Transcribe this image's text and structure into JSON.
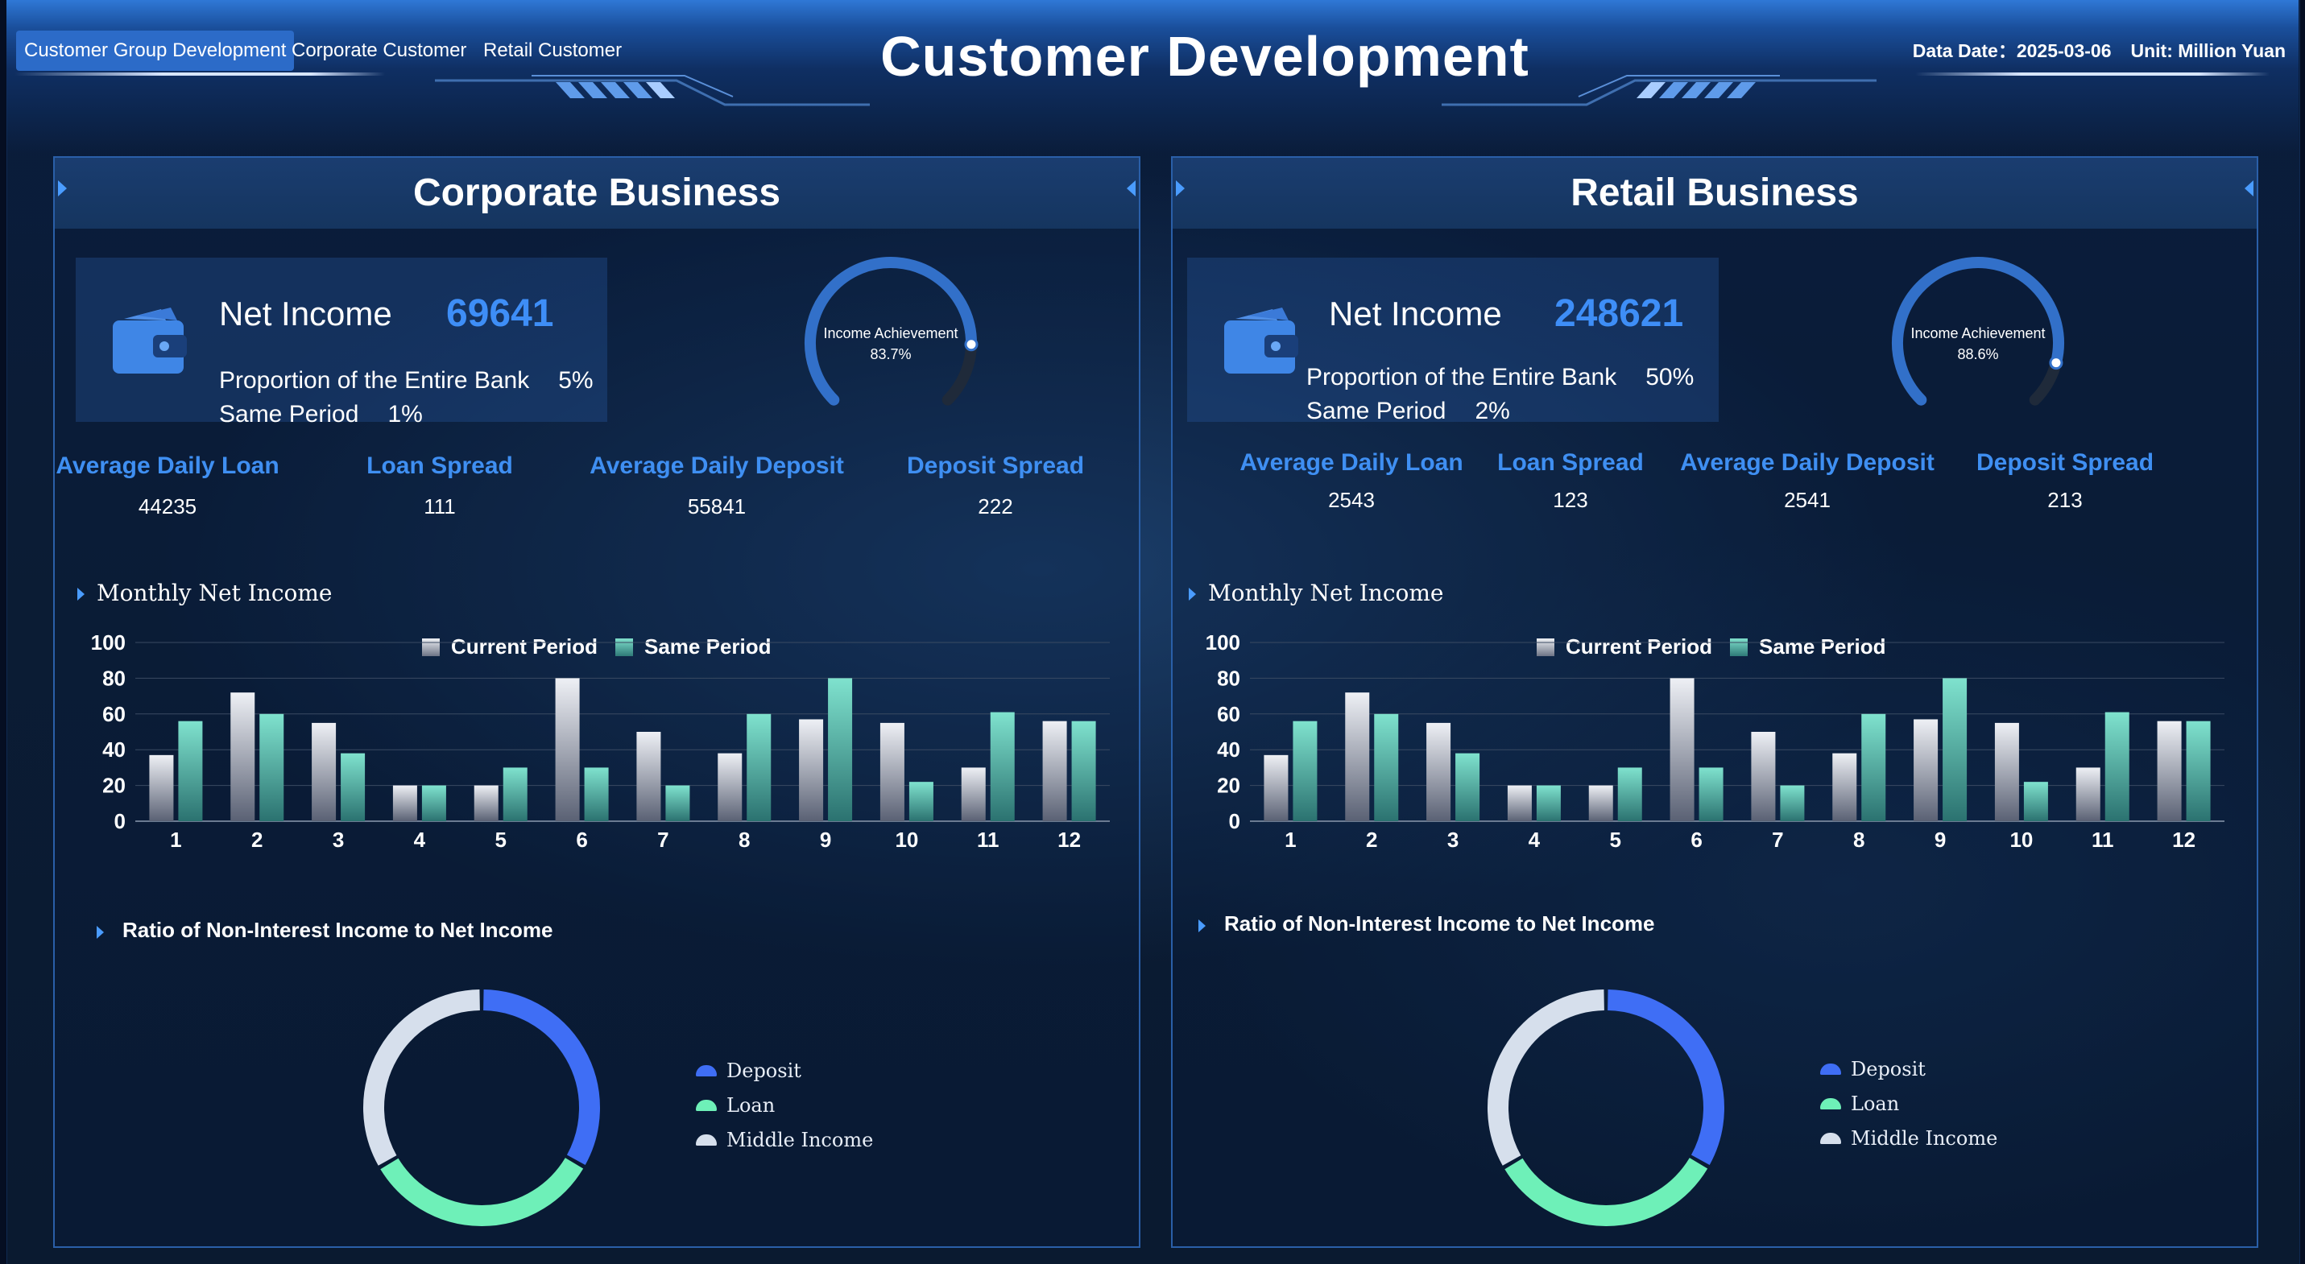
{
  "header": {
    "title": "Customer Development",
    "tabs": [
      {
        "label": "Customer Group Development",
        "active": true
      },
      {
        "label": "Corporate Customer",
        "active": false
      },
      {
        "label": "Retail Customer",
        "active": false
      }
    ],
    "data_date": "Data Date：2025-03-06",
    "unit": "Unit: Million Yuan"
  },
  "colors": {
    "accent": "#3e8ef7",
    "current_period": "#c8ccd6",
    "same_period": "#5bc9b3",
    "deposit": "#3f6ef5",
    "loan": "#6ef0b8",
    "middle_income": "#d6dfec"
  },
  "corporate": {
    "title": "Corporate Business",
    "net_income_label": "Net Income",
    "net_income_value": "69641",
    "proportion_label": "Proportion of the Entire Bank",
    "proportion_value": "5%",
    "same_period_label": "Same Period",
    "same_period_value": "1%",
    "gauge_label": "Income Achievement",
    "gauge_value": "83.7%",
    "gauge_fraction": 0.837,
    "metrics": [
      {
        "label": "Average Daily Loan",
        "value": "44235"
      },
      {
        "label": "Loan Spread",
        "value": "111"
      },
      {
        "label": "Average Daily Deposit",
        "value": "55841"
      },
      {
        "label": "Deposit Spread",
        "value": "222"
      }
    ],
    "monthly_title": "Monthly Net Income",
    "ratio_title": "Ratio of Non-Interest Income to Net Income",
    "donut_legend": [
      "Deposit",
      "Loan",
      "Middle Income"
    ]
  },
  "retail": {
    "title": "Retail Business",
    "net_income_label": "Net Income",
    "net_income_value": "248621",
    "proportion_label": "Proportion of the Entire Bank",
    "proportion_value": "50%",
    "same_period_label": "Same Period",
    "same_period_value": "2%",
    "gauge_label": "Income Achievement",
    "gauge_value": "88.6%",
    "gauge_fraction": 0.886,
    "metrics": [
      {
        "label": "Average Daily Loan",
        "value": "2543"
      },
      {
        "label": "Loan Spread",
        "value": "123"
      },
      {
        "label": "Average Daily Deposit",
        "value": "2541"
      },
      {
        "label": "Deposit Spread",
        "value": "213"
      }
    ],
    "monthly_title": "Monthly Net Income",
    "ratio_title": "Ratio of Non-Interest Income to Net Income",
    "donut_legend": [
      "Deposit",
      "Loan",
      "Middle Income"
    ]
  },
  "chart_data": [
    {
      "type": "bar",
      "panel": "corporate",
      "title": "Monthly Net Income",
      "categories": [
        "1",
        "2",
        "3",
        "4",
        "5",
        "6",
        "7",
        "8",
        "9",
        "10",
        "11",
        "12"
      ],
      "series": [
        {
          "name": "Current Period",
          "values": [
            37,
            72,
            55,
            20,
            20,
            80,
            50,
            38,
            57,
            55,
            30,
            56
          ]
        },
        {
          "name": "Same Period",
          "values": [
            56,
            60,
            38,
            20,
            30,
            30,
            20,
            60,
            80,
            22,
            61,
            56
          ]
        }
      ],
      "ylim": [
        0,
        100
      ],
      "yticks": [
        0,
        20,
        40,
        60,
        80,
        100
      ],
      "legend": "top-center"
    },
    {
      "type": "bar",
      "panel": "retail",
      "title": "Monthly Net Income",
      "categories": [
        "1",
        "2",
        "3",
        "4",
        "5",
        "6",
        "7",
        "8",
        "9",
        "10",
        "11",
        "12"
      ],
      "series": [
        {
          "name": "Current Period",
          "values": [
            37,
            72,
            55,
            20,
            20,
            80,
            50,
            38,
            57,
            55,
            30,
            56
          ]
        },
        {
          "name": "Same Period",
          "values": [
            56,
            60,
            38,
            20,
            30,
            30,
            20,
            60,
            80,
            22,
            61,
            56
          ]
        }
      ],
      "ylim": [
        0,
        100
      ],
      "yticks": [
        0,
        20,
        40,
        60,
        80,
        100
      ],
      "legend": "top-center"
    },
    {
      "type": "pie",
      "panel": "corporate",
      "title": "Ratio of Non-Interest Income to Net Income",
      "labels": [
        "Deposit",
        "Loan",
        "Middle Income"
      ],
      "values": [
        33.3,
        33.3,
        33.4
      ],
      "donut": true,
      "legend": "right"
    },
    {
      "type": "pie",
      "panel": "retail",
      "title": "Ratio of Non-Interest Income to Net Income",
      "labels": [
        "Deposit",
        "Loan",
        "Middle Income"
      ],
      "values": [
        33.3,
        33.3,
        33.4
      ],
      "donut": true,
      "legend": "right"
    }
  ]
}
